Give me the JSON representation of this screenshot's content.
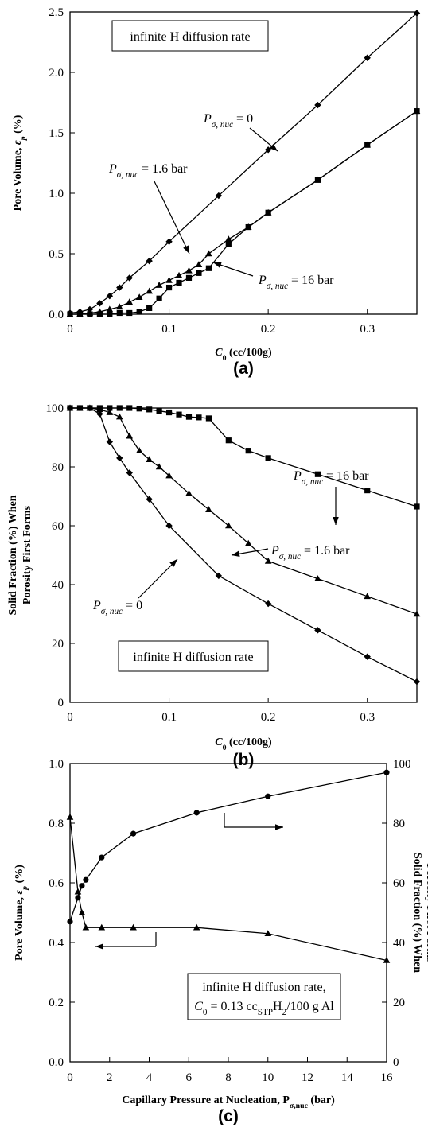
{
  "figure": {
    "panels": [
      {
        "label": "(a)",
        "note_lines": [
          "infinite H diffusion rate"
        ],
        "ylabel": "Pore Volume, εp (%)",
        "xlabel": "C0 (cc/100g)",
        "x_ticks": [
          "0",
          "0.1",
          "0.2",
          "0.3"
        ],
        "y_ticks": [
          "0.0",
          "0.5",
          "1.0",
          "1.5",
          "2.0",
          "2.5"
        ],
        "annotations": [
          "Pσ, nuc = 0",
          "Pσ, nuc = 1.6 bar",
          "Pσ, nuc = 16 bar"
        ]
      },
      {
        "label": "(b)",
        "note_lines": [
          "infinite H diffusion rate"
        ],
        "ylabel_lines": [
          "Solid Fraction (%) When",
          "Porosity First Forms"
        ],
        "xlabel": "C0 (cc/100g)",
        "x_ticks": [
          "0",
          "0.1",
          "0.2",
          "0.3"
        ],
        "y_ticks": [
          "0",
          "20",
          "40",
          "60",
          "80",
          "100"
        ],
        "annotations": [
          "Pσ, nuc = 16 bar",
          "Pσ, nuc = 1.6 bar",
          "Pσ, nuc = 0"
        ]
      },
      {
        "label": "(c)",
        "note_lines": [
          "infinite H diffusion rate,",
          "C0 = 0.13 ccSTPH2/100 g Al"
        ],
        "ylabel": "Pore Volume, εp (%)",
        "y2label_lines": [
          "Solid Fraction (%) When",
          "Porosity First Forms"
        ],
        "xlabel": "Capillary Pressure at Nucleation, Pσ,nuc (bar)",
        "x_ticks": [
          "0",
          "2",
          "4",
          "6",
          "8",
          "10",
          "12",
          "14",
          "16"
        ],
        "y_ticks": [
          "0.0",
          "0.2",
          "0.4",
          "0.6",
          "0.8",
          "1.0"
        ],
        "y2_ticks": [
          "0",
          "20",
          "40",
          "60",
          "80",
          "100"
        ]
      }
    ]
  },
  "chart_data": [
    {
      "type": "line",
      "xlim": [
        0,
        0.35
      ],
      "ylim": [
        0,
        2.5
      ],
      "grid": false,
      "series": [
        {
          "name": "Pσ, nuc = 0",
          "marker": "diamond",
          "x": [
            0,
            0.01,
            0.02,
            0.03,
            0.04,
            0.05,
            0.06,
            0.08,
            0.1,
            0.15,
            0.2,
            0.25,
            0.3,
            0.35
          ],
          "y": [
            0.01,
            0.02,
            0.04,
            0.09,
            0.15,
            0.22,
            0.3,
            0.44,
            0.6,
            0.98,
            1.36,
            1.73,
            2.12,
            2.49
          ]
        },
        {
          "name": "Pσ, nuc = 1.6 bar",
          "marker": "triangle",
          "x": [
            0,
            0.01,
            0.02,
            0.03,
            0.04,
            0.05,
            0.06,
            0.07,
            0.08,
            0.09,
            0.1,
            0.11,
            0.12,
            0.13,
            0.14,
            0.16,
            0.18,
            0.2,
            0.25,
            0.3,
            0.35
          ],
          "y": [
            0.0,
            0.0,
            0.01,
            0.02,
            0.04,
            0.06,
            0.1,
            0.14,
            0.19,
            0.24,
            0.28,
            0.32,
            0.36,
            0.41,
            0.5,
            0.62,
            0.72,
            0.84,
            1.11,
            1.4,
            1.68
          ]
        },
        {
          "name": "Pσ, nuc = 16 bar",
          "marker": "square",
          "x": [
            0,
            0.01,
            0.02,
            0.03,
            0.04,
            0.05,
            0.06,
            0.07,
            0.08,
            0.09,
            0.1,
            0.11,
            0.12,
            0.13,
            0.14,
            0.16,
            0.18,
            0.2,
            0.25,
            0.3,
            0.35
          ],
          "y": [
            0.0,
            0.0,
            0.0,
            0.0,
            0.0,
            0.01,
            0.01,
            0.02,
            0.05,
            0.13,
            0.22,
            0.26,
            0.3,
            0.34,
            0.38,
            0.58,
            0.72,
            0.84,
            1.11,
            1.4,
            1.68
          ]
        }
      ]
    },
    {
      "type": "line",
      "xlim": [
        0,
        0.35
      ],
      "ylim": [
        0,
        100
      ],
      "grid": false,
      "series": [
        {
          "name": "Pσ, nuc = 0",
          "marker": "diamond",
          "x": [
            0,
            0.01,
            0.02,
            0.03,
            0.04,
            0.05,
            0.06,
            0.08,
            0.1,
            0.15,
            0.2,
            0.25,
            0.3,
            0.35
          ],
          "y": [
            100,
            100,
            100,
            98,
            88.5,
            83,
            78,
            69,
            60,
            43,
            33.5,
            24.5,
            15.5,
            7
          ]
        },
        {
          "name": "Pσ, nuc = 1.6 bar",
          "marker": "triangle",
          "x": [
            0,
            0.01,
            0.02,
            0.03,
            0.04,
            0.05,
            0.06,
            0.07,
            0.08,
            0.09,
            0.1,
            0.12,
            0.14,
            0.16,
            0.18,
            0.2,
            0.25,
            0.3,
            0.35
          ],
          "y": [
            100,
            100,
            100,
            99.5,
            98.5,
            97,
            90.5,
            85.5,
            82.5,
            80,
            77,
            71,
            65.5,
            60,
            54,
            48,
            42,
            36,
            30
          ]
        },
        {
          "name": "Pσ, nuc = 16 bar",
          "marker": "square",
          "x": [
            0,
            0.01,
            0.02,
            0.03,
            0.04,
            0.05,
            0.06,
            0.07,
            0.08,
            0.09,
            0.1,
            0.11,
            0.12,
            0.13,
            0.14,
            0.16,
            0.18,
            0.2,
            0.25,
            0.3,
            0.35
          ],
          "y": [
            100,
            100,
            100,
            100,
            100,
            100,
            100,
            99.8,
            99.5,
            99,
            98.5,
            97.8,
            97,
            96.8,
            96.5,
            89,
            85.5,
            83,
            77.5,
            72,
            66.5
          ]
        }
      ]
    },
    {
      "type": "line",
      "xlim": [
        0,
        16
      ],
      "ylim": [
        0,
        1.0
      ],
      "y2lim": [
        0,
        100
      ],
      "grid": false,
      "series": [
        {
          "name": "Pore Volume",
          "axis": "left",
          "marker": "triangle",
          "x": [
            0,
            0.4,
            0.6,
            0.8,
            1.6,
            3.2,
            6.4,
            10,
            16
          ],
          "y": [
            0.82,
            0.57,
            0.5,
            0.45,
            0.45,
            0.45,
            0.45,
            0.43,
            0.34
          ]
        },
        {
          "name": "Solid Fraction",
          "axis": "right",
          "marker": "circle",
          "x": [
            0,
            0.4,
            0.6,
            0.8,
            1.6,
            3.2,
            6.4,
            10,
            16
          ],
          "y": [
            47,
            55,
            59,
            61,
            68.5,
            76.5,
            83.5,
            89,
            97
          ]
        }
      ]
    }
  ]
}
